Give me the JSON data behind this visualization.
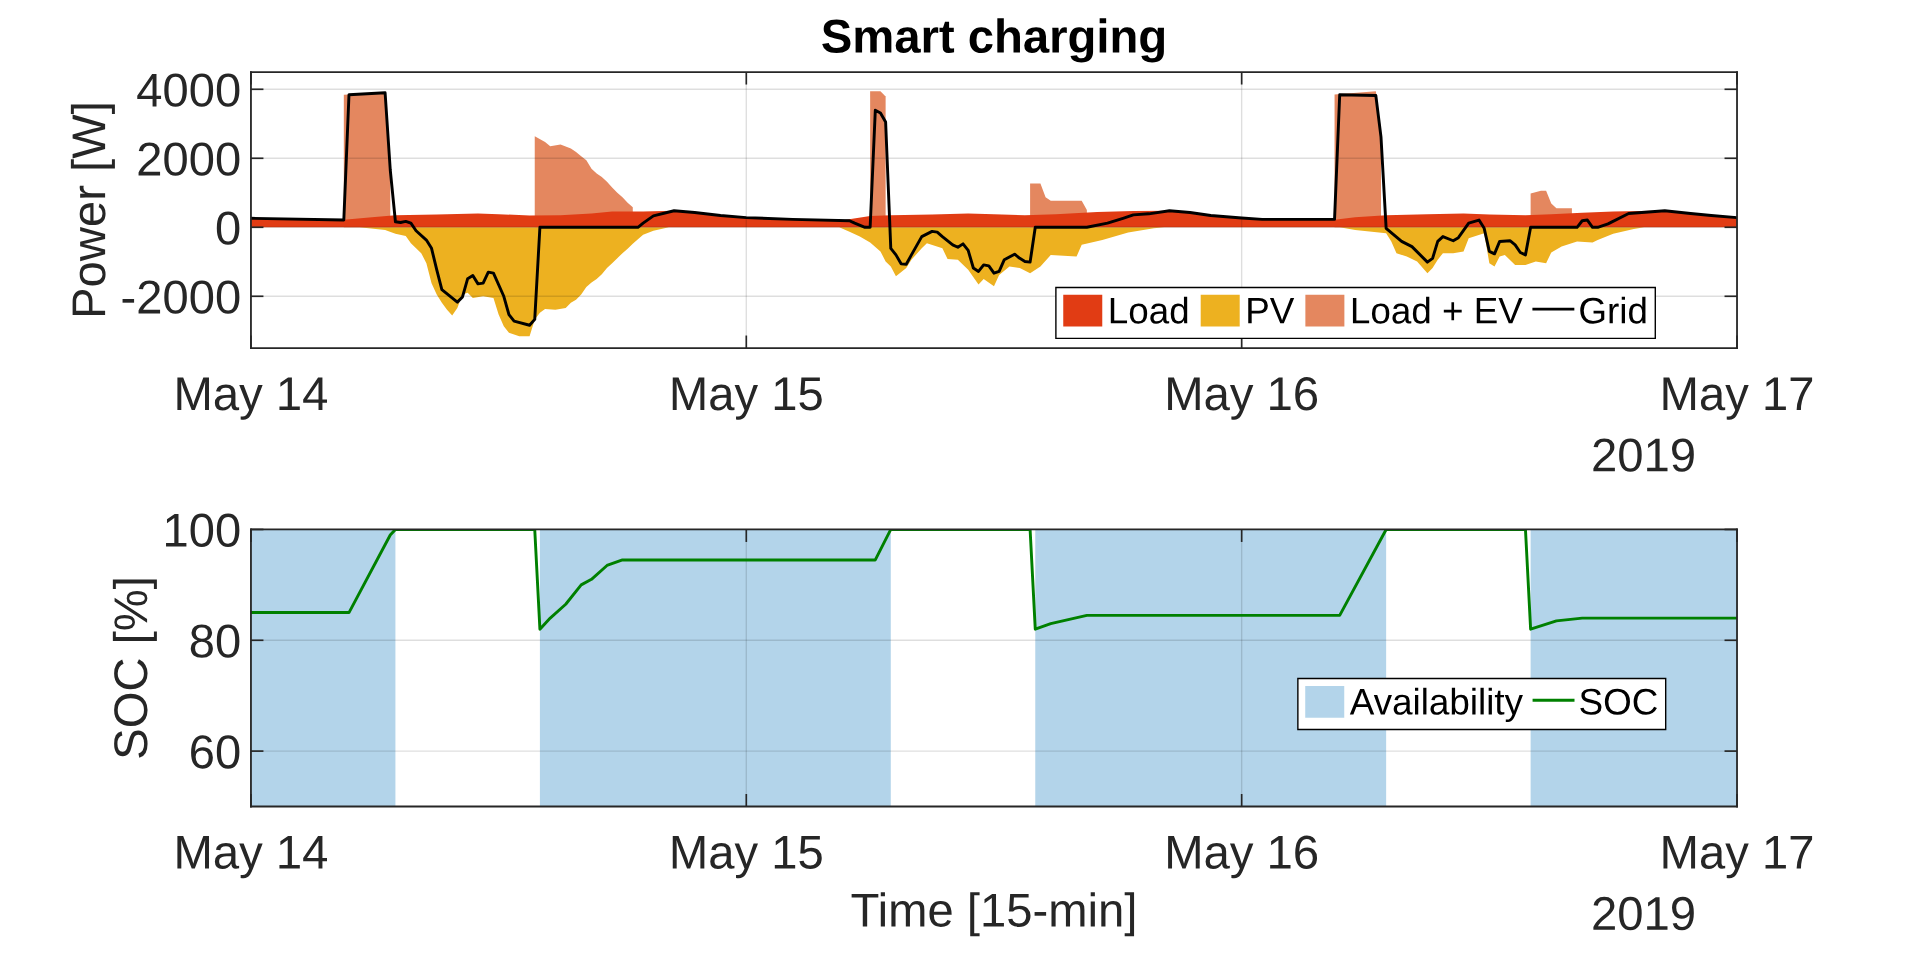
{
  "chart_data": [
    {
      "type": "area",
      "title": "Smart charging",
      "ylabel": "Power [W]",
      "xlim": [
        "2019-05-14",
        "2019-05-17"
      ],
      "xticks": [
        {
          "value": "2019-05-14",
          "label": "May 14"
        },
        {
          "value": "2019-05-15",
          "label": "May 15"
        },
        {
          "value": "2019-05-16",
          "label": "May 16"
        },
        {
          "value": "2019-05-17",
          "label": "May 17"
        }
      ],
      "ylim": [
        -3500,
        4500
      ],
      "yticks": [
        -2000,
        0,
        2000,
        4000
      ],
      "grid": true,
      "legend": "bottom right",
      "annotations": [
        "2019"
      ],
      "series": [
        {
          "name": "Load",
          "color": "#e13c14",
          "x": [
            "2019-05-14T00:00",
            "2019-05-14T02:00",
            "2019-05-14T04:30",
            "2019-05-14T06:00",
            "2019-05-14T07:00",
            "2019-05-14T09:00",
            "2019-05-14T11:00",
            "2019-05-14T12:00",
            "2019-05-14T13:30",
            "2019-05-14T15:00",
            "2019-05-14T16:30",
            "2019-05-14T17:30",
            "2019-05-14T19:00",
            "2019-05-14T20:30",
            "2019-05-14T22:00",
            "2019-05-14T23:00",
            "2019-05-15T00:00",
            "2019-05-15T02:00",
            "2019-05-15T04:45",
            "2019-05-15T06:00",
            "2019-05-15T07:00",
            "2019-05-15T09:00",
            "2019-05-15T10:45",
            "2019-05-15T12:00",
            "2019-05-15T13:30",
            "2019-05-15T15:00",
            "2019-05-15T17:00",
            "2019-05-15T18:45",
            "2019-05-15T20:30",
            "2019-05-15T22:00",
            "2019-05-15T23:30",
            "2019-05-16T00:00",
            "2019-05-16T02:00",
            "2019-05-16T04:30",
            "2019-05-16T05:30",
            "2019-05-16T07:00",
            "2019-05-16T09:00",
            "2019-05-16T10:45",
            "2019-05-16T12:00",
            "2019-05-16T13:45",
            "2019-05-16T15:00",
            "2019-05-16T16:30",
            "2019-05-16T18:00",
            "2019-05-16T20:00",
            "2019-05-16T22:00",
            "2019-05-17T00:00"
          ],
          "values": [
            250,
            230,
            220,
            300,
            350,
            370,
            400,
            380,
            340,
            350,
            400,
            460,
            460,
            480,
            410,
            330,
            280,
            230,
            210,
            330,
            350,
            370,
            400,
            380,
            350,
            380,
            440,
            470,
            480,
            400,
            300,
            280,
            230,
            220,
            290,
            350,
            380,
            400,
            370,
            350,
            380,
            420,
            460,
            480,
            390,
            280
          ]
        },
        {
          "name": "PV",
          "color": "#edb120",
          "x": [
            "2019-05-14T05:15",
            "2019-05-14T06:30",
            "2019-05-14T07:00",
            "2019-05-14T07:30",
            "2019-05-14T07:45",
            "2019-05-14T08:00",
            "2019-05-14T08:15",
            "2019-05-14T08:30",
            "2019-05-14T08:45",
            "2019-05-14T09:00",
            "2019-05-14T09:15",
            "2019-05-14T09:30",
            "2019-05-14T09:45",
            "2019-05-14T10:00",
            "2019-05-14T10:15",
            "2019-05-14T10:30",
            "2019-05-14T10:45",
            "2019-05-14T11:15",
            "2019-05-14T11:45",
            "2019-05-14T12:00",
            "2019-05-14T12:15",
            "2019-05-14T12:30",
            "2019-05-14T13:00",
            "2019-05-14T13:30",
            "2019-05-14T13:45",
            "2019-05-14T14:00",
            "2019-05-14T14:15",
            "2019-05-14T14:45",
            "2019-05-14T15:15",
            "2019-05-14T15:30",
            "2019-05-14T15:45",
            "2019-05-14T16:00",
            "2019-05-14T16:15",
            "2019-05-14T16:30",
            "2019-05-14T16:45",
            "2019-05-14T17:00",
            "2019-05-14T17:15",
            "2019-05-14T17:30",
            "2019-05-14T17:45",
            "2019-05-14T18:00",
            "2019-05-14T18:15",
            "2019-05-14T18:30",
            "2019-05-14T18:45",
            "2019-05-14T19:00",
            "2019-05-14T19:30",
            "2019-05-14T20:15",
            "2019-05-15T04:30",
            "2019-05-15T05:00",
            "2019-05-15T05:30",
            "2019-05-15T06:00",
            "2019-05-15T06:30",
            "2019-05-15T06:45",
            "2019-05-15T07:00",
            "2019-05-15T07:15",
            "2019-05-15T07:45",
            "2019-05-15T08:00",
            "2019-05-15T08:30",
            "2019-05-15T08:45",
            "2019-05-15T09:30",
            "2019-05-15T09:45",
            "2019-05-15T10:15",
            "2019-05-15T10:45",
            "2019-05-15T11:15",
            "2019-05-15T11:30",
            "2019-05-15T12:00",
            "2019-05-15T12:15",
            "2019-05-15T12:45",
            "2019-05-15T13:15",
            "2019-05-15T13:45",
            "2019-05-15T14:15",
            "2019-05-15T14:45",
            "2019-05-15T16:00",
            "2019-05-15T16:15",
            "2019-05-15T17:15",
            "2019-05-15T18:30",
            "2019-05-15T19:45",
            "2019-05-15T20:15",
            "2019-05-16T04:45",
            "2019-05-16T05:30",
            "2019-05-16T07:00",
            "2019-05-16T07:15",
            "2019-05-16T07:30",
            "2019-05-16T08:00",
            "2019-05-16T08:30",
            "2019-05-16T09:00",
            "2019-05-16T09:15",
            "2019-05-16T09:30",
            "2019-05-16T09:45",
            "2019-05-16T10:15",
            "2019-05-16T10:45",
            "2019-05-16T11:00",
            "2019-05-16T11:45",
            "2019-05-16T12:00",
            "2019-05-16T12:15",
            "2019-05-16T12:30",
            "2019-05-16T12:45",
            "2019-05-16T13:15",
            "2019-05-16T13:45",
            "2019-05-16T14:15",
            "2019-05-16T14:45",
            "2019-05-16T15:00",
            "2019-05-16T15:30",
            "2019-05-16T16:15",
            "2019-05-16T17:00",
            "2019-05-16T17:15",
            "2019-05-16T18:00",
            "2019-05-16T19:00",
            "2019-05-16T19:30"
          ],
          "values": [
            0,
            -80,
            -190,
            -250,
            -460,
            -610,
            -750,
            -1040,
            -1620,
            -1950,
            -2190,
            -2390,
            -2560,
            -2340,
            -1950,
            -1900,
            -2050,
            -2000,
            -2050,
            -2530,
            -2870,
            -3060,
            -3160,
            -3160,
            -2670,
            -2480,
            -2370,
            -2390,
            -2340,
            -2190,
            -2100,
            -1950,
            -1730,
            -1600,
            -1500,
            -1360,
            -1180,
            -1040,
            -900,
            -750,
            -620,
            -480,
            -350,
            -220,
            -100,
            0,
            0,
            -130,
            -270,
            -440,
            -700,
            -990,
            -1140,
            -1420,
            -1180,
            -940,
            -610,
            -460,
            -610,
            -920,
            -940,
            -1230,
            -1660,
            -1500,
            -1710,
            -1380,
            -1140,
            -1180,
            -1330,
            -1140,
            -800,
            -850,
            -510,
            -370,
            -150,
            -30,
            0,
            0,
            -80,
            -170,
            -410,
            -750,
            -850,
            -990,
            -1330,
            -1180,
            -940,
            -750,
            -750,
            -700,
            -320,
            -170,
            -1040,
            -1140,
            -850,
            -800,
            -1090,
            -1090,
            -990,
            -1040,
            -730,
            -560,
            -410,
            -440,
            -370,
            -190,
            -50,
            0
          ]
        },
        {
          "name": "Load + EV",
          "color": "#e4875f",
          "x": [
            "2019-05-14T04:30",
            "2019-05-14T06:30",
            "2019-05-14T06:45",
            "2019-05-14T07:00",
            "2019-05-14T13:45",
            "2019-05-14T14:15",
            "2019-05-14T14:30",
            "2019-05-14T15:00",
            "2019-05-14T15:30",
            "2019-05-14T15:45",
            "2019-05-14T16:00",
            "2019-05-14T16:15",
            "2019-05-14T16:30",
            "2019-05-14T16:45",
            "2019-05-14T17:00",
            "2019-05-14T17:15",
            "2019-05-14T17:30",
            "2019-05-14T17:45",
            "2019-05-14T18:00",
            "2019-05-14T18:15",
            "2019-05-14T18:30",
            "2019-05-14T18:45",
            "2019-05-15T06:00",
            "2019-05-15T06:30",
            "2019-05-15T06:45",
            "2019-05-15T07:00",
            "2019-05-15T13:45",
            "2019-05-15T14:15",
            "2019-05-15T14:30",
            "2019-05-15T14:45",
            "2019-05-15T16:15",
            "2019-05-15T16:30",
            "2019-05-15T16:45",
            "2019-05-16T04:30",
            "2019-05-16T06:30",
            "2019-05-16T06:45",
            "2019-05-16T07:00",
            "2019-05-16T14:00",
            "2019-05-16T14:30",
            "2019-05-16T14:45",
            "2019-05-16T15:00",
            "2019-05-16T15:15",
            "2019-05-16T16:00"
          ],
          "values": [
            3840,
            3900,
            1560,
            null,
            2640,
            2470,
            2350,
            2400,
            2280,
            2180,
            2060,
            1940,
            1700,
            1560,
            1460,
            1320,
            1150,
            1000,
            870,
            710,
            580,
            null,
            3940,
            3940,
            3790,
            null,
            1270,
            1270,
            870,
            770,
            770,
            500,
            null,
            3850,
            3940,
            2810,
            null,
            980,
            1060,
            1060,
            690,
            550,
            550
          ]
        },
        {
          "name": "Grid",
          "type": "line",
          "color": "#000000",
          "x": [
            "2019-05-14T00:00",
            "2019-05-14T04:30",
            "2019-05-14T04:45",
            "2019-05-14T06:30",
            "2019-05-14T06:45",
            "2019-05-14T07:00",
            "2019-05-14T07:15",
            "2019-05-14T07:30",
            "2019-05-14T07:45",
            "2019-05-14T08:00",
            "2019-05-14T08:30",
            "2019-05-14T08:45",
            "2019-05-14T09:00",
            "2019-05-14T09:15",
            "2019-05-14T10:00",
            "2019-05-14T10:15",
            "2019-05-14T10:30",
            "2019-05-14T10:45",
            "2019-05-14T11:00",
            "2019-05-14T11:15",
            "2019-05-14T11:30",
            "2019-05-14T11:45",
            "2019-05-14T12:15",
            "2019-05-14T12:30",
            "2019-05-14T12:45",
            "2019-05-14T13:30",
            "2019-05-14T13:45",
            "2019-05-14T14:00",
            "2019-05-14T18:45",
            "2019-05-14T19:00",
            "2019-05-14T19:30",
            "2019-05-14T20:30",
            "2019-05-14T21:30",
            "2019-05-14T22:45",
            "2019-05-15T00:00",
            "2019-05-15T02:15",
            "2019-05-15T05:00",
            "2019-05-15T05:15",
            "2019-05-15T05:45",
            "2019-05-15T06:00",
            "2019-05-15T06:15",
            "2019-05-15T06:30",
            "2019-05-15T06:45",
            "2019-05-15T07:00",
            "2019-05-15T07:15",
            "2019-05-15T07:30",
            "2019-05-15T07:45",
            "2019-05-15T08:00",
            "2019-05-15T08:30",
            "2019-05-15T09:00",
            "2019-05-15T09:15",
            "2019-05-15T09:30",
            "2019-05-15T10:00",
            "2019-05-15T10:15",
            "2019-05-15T10:30",
            "2019-05-15T10:45",
            "2019-05-15T11:00",
            "2019-05-15T11:15",
            "2019-05-15T11:30",
            "2019-05-15T11:45",
            "2019-05-15T12:00",
            "2019-05-15T12:15",
            "2019-05-15T12:30",
            "2019-05-15T13:00",
            "2019-05-15T13:15",
            "2019-05-15T13:30",
            "2019-05-15T13:45",
            "2019-05-15T14:00",
            "2019-05-15T16:30",
            "2019-05-15T17:30",
            "2019-05-15T18:15",
            "2019-05-15T18:45",
            "2019-05-15T19:30",
            "2019-05-15T20:30",
            "2019-05-15T21:30",
            "2019-05-15T22:30",
            "2019-05-16T00:00",
            "2019-05-16T01:00",
            "2019-05-16T04:30",
            "2019-05-16T04:45",
            "2019-05-16T06:30",
            "2019-05-16T06:45",
            "2019-05-16T07:00",
            "2019-05-16T07:45",
            "2019-05-16T08:15",
            "2019-05-16T09:00",
            "2019-05-16T09:15",
            "2019-05-16T09:30",
            "2019-05-16T09:45",
            "2019-05-16T10:15",
            "2019-05-16T10:30",
            "2019-05-16T11:00",
            "2019-05-16T11:30",
            "2019-05-16T11:45",
            "2019-05-16T12:00",
            "2019-05-16T12:15",
            "2019-05-16T12:30",
            "2019-05-16T13:00",
            "2019-05-16T13:15",
            "2019-05-16T13:30",
            "2019-05-16T13:45",
            "2019-05-16T14:00",
            "2019-05-16T16:15",
            "2019-05-16T16:30",
            "2019-05-16T16:45",
            "2019-05-16T17:00",
            "2019-05-16T17:15",
            "2019-05-16T17:45",
            "2019-05-16T18:45",
            "2019-05-16T20:30",
            "2019-05-16T21:45",
            "2019-05-16T22:45",
            "2019-05-17T00:00"
          ],
          "values": [
            260,
            210,
            3840,
            3900,
            1660,
            160,
            140,
            170,
            120,
            -100,
            -370,
            -610,
            -1230,
            -1810,
            -2170,
            -2020,
            -1490,
            -1400,
            -1640,
            -1620,
            -1300,
            -1330,
            -2000,
            -2530,
            -2720,
            -2840,
            -2670,
            0,
            0,
            120,
            330,
            480,
            430,
            340,
            280,
            230,
            190,
            120,
            0,
            0,
            3390,
            3310,
            3050,
            -610,
            -800,
            -1060,
            -1070,
            -800,
            -270,
            -120,
            -140,
            -270,
            -510,
            -580,
            -480,
            -670,
            -1180,
            -1280,
            -1090,
            -1120,
            -1330,
            -1280,
            -940,
            -780,
            -900,
            -990,
            -1010,
            0,
            0,
            120,
            260,
            360,
            390,
            480,
            430,
            340,
            270,
            230,
            230,
            3840,
            3820,
            2620,
            -30,
            -410,
            -560,
            -1010,
            -900,
            -410,
            -270,
            -390,
            -300,
            120,
            210,
            -30,
            -700,
            -770,
            -410,
            -390,
            -510,
            -730,
            -800,
            0,
            0,
            190,
            210,
            0,
            0,
            100,
            400,
            480,
            400,
            340,
            280
          ]
        }
      ]
    },
    {
      "type": "line",
      "xlabel": "Time [15-min]",
      "ylabel": "SOC [%]",
      "xlim": [
        "2019-05-14",
        "2019-05-17"
      ],
      "xticks": [
        {
          "value": "2019-05-14",
          "label": "May 14"
        },
        {
          "value": "2019-05-15",
          "label": "May 15"
        },
        {
          "value": "2019-05-16",
          "label": "May 16"
        },
        {
          "value": "2019-05-17",
          "label": "May 17"
        }
      ],
      "ylim": [
        50,
        100
      ],
      "yticks": [
        60,
        80,
        100
      ],
      "grid": true,
      "legend": "right",
      "annotations": [
        "2019"
      ],
      "series": [
        {
          "name": "Availability",
          "type": "area",
          "color": "#b3d4ea",
          "x": [
            "2019-05-14T00:00",
            "2019-05-14T07:00",
            "2019-05-14T10:00",
            "2019-05-14T14:00",
            "2019-05-15T07:00",
            "2019-05-15T10:00",
            "2019-05-15T14:00",
            "2019-05-16T07:00",
            "2019-05-16T10:00",
            "2019-05-16T14:00",
            "2019-05-17T00:00"
          ],
          "values": [
            100,
            100,
            null,
            100,
            100,
            null,
            100,
            100,
            null,
            100,
            100
          ]
        },
        {
          "name": "SOC",
          "color": "#008000",
          "x": [
            "2019-05-14T00:00",
            "2019-05-14T04:45",
            "2019-05-14T06:45",
            "2019-05-14T07:00",
            "2019-05-14T13:45",
            "2019-05-14T14:00",
            "2019-05-14T14:30",
            "2019-05-14T15:15",
            "2019-05-14T16:00",
            "2019-05-14T16:30",
            "2019-05-14T17:15",
            "2019-05-14T18:00",
            "2019-05-15T06:15",
            "2019-05-15T07:00",
            "2019-05-15T13:45",
            "2019-05-15T14:00",
            "2019-05-15T14:45",
            "2019-05-15T16:30",
            "2019-05-16T04:45",
            "2019-05-16T07:00",
            "2019-05-16T13:45",
            "2019-05-16T14:00",
            "2019-05-16T15:15",
            "2019-05-16T16:30",
            "2019-05-17T00:00"
          ],
          "values": [
            85,
            85,
            99,
            100,
            100,
            82,
            84,
            86.5,
            90,
            91,
            93.5,
            94.5,
            94.5,
            100,
            100,
            82,
            83,
            84.5,
            84.5,
            100,
            100,
            82,
            83.5,
            84,
            84
          ]
        }
      ]
    }
  ]
}
